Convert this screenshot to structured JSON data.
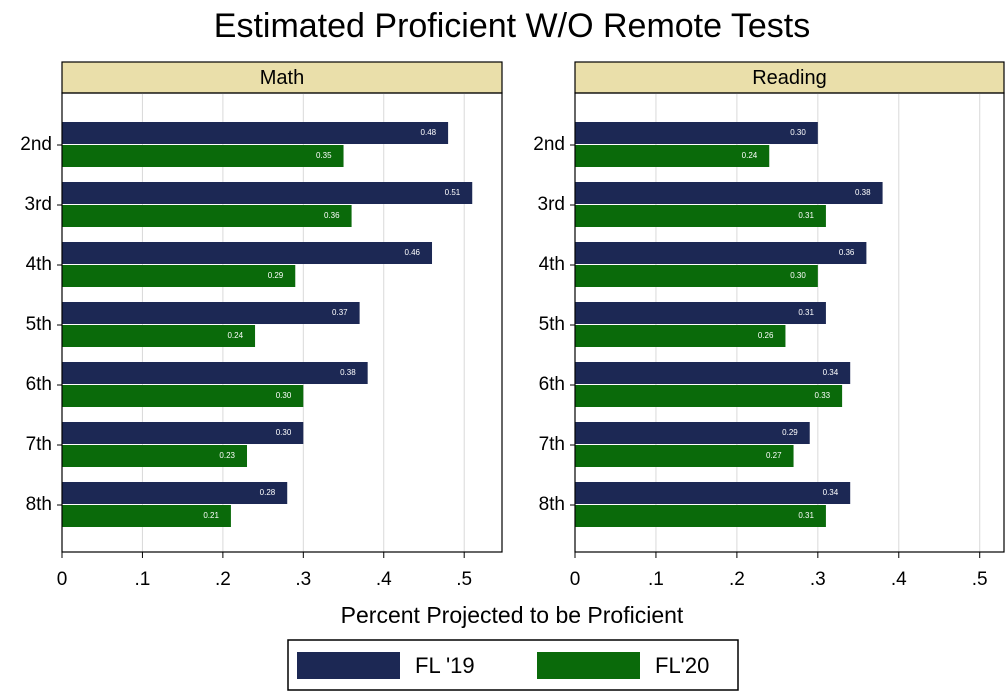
{
  "title": "Estimated Proficient W/O Remote Tests",
  "x_label": "Percent Projected to be Proficient",
  "chart_data": [
    {
      "type": "bar",
      "orientation": "horizontal",
      "panel_title": "Math",
      "categories": [
        "2nd",
        "3rd",
        "4th",
        "5th",
        "6th",
        "7th",
        "8th"
      ],
      "series": [
        {
          "name": "FL '19",
          "color": "#1c2854",
          "values": [
            0.48,
            0.51,
            0.46,
            0.37,
            0.38,
            0.3,
            0.28
          ],
          "value_labels": [
            "0.48",
            "0.51",
            "0.46",
            "0.37",
            "0.38",
            "0.30",
            "0.28"
          ]
        },
        {
          "name": "FL'20",
          "color": "#0a6a0a",
          "values": [
            0.35,
            0.36,
            0.29,
            0.24,
            0.3,
            0.23,
            0.21
          ],
          "value_labels": [
            "0.35",
            "0.36",
            "0.29",
            "0.24",
            "0.30",
            "0.23",
            "0.21"
          ]
        }
      ],
      "xlim": [
        0,
        0.547
      ],
      "xticks": [
        0,
        {
          "value": 0.1,
          "label": ".1"
        },
        {
          "value": 0.2,
          "label": ".2"
        },
        {
          "value": 0.3,
          "label": ".3"
        },
        {
          "value": 0.4,
          "label": ".4"
        },
        {
          "value": 0.5,
          "label": ".5"
        }
      ],
      "grid": true
    },
    {
      "type": "bar",
      "orientation": "horizontal",
      "panel_title": "Reading",
      "categories": [
        "2nd",
        "3rd",
        "4th",
        "5th",
        "6th",
        "7th",
        "8th"
      ],
      "series": [
        {
          "color": "#1c2854",
          "values": [
            0.3,
            0.38,
            0.36,
            0.31,
            0.34,
            0.29,
            0.34
          ],
          "value_labels": [
            "0.30",
            "0.38",
            "0.36",
            "0.31",
            "0.34",
            "0.29",
            "0.34"
          ]
        },
        {
          "color": "#0a6a0a",
          "values": [
            0.24,
            0.31,
            0.3,
            0.26,
            0.33,
            0.27,
            0.31
          ],
          "value_labels": [
            "0.24",
            "0.31",
            "0.30",
            "0.26",
            "0.33",
            "0.27",
            "0.31"
          ]
        }
      ],
      "xlim": [
        0,
        0.53
      ],
      "xticks": [
        0,
        {
          "value": 0.1,
          "label": ".1"
        },
        {
          "value": 0.2,
          "label": ".2"
        },
        {
          "value": 0.3,
          "label": ".3"
        },
        {
          "value": 0.4,
          "label": ".4"
        },
        {
          "value": 0.5,
          "label": ".5"
        }
      ],
      "grid": true
    }
  ]
}
